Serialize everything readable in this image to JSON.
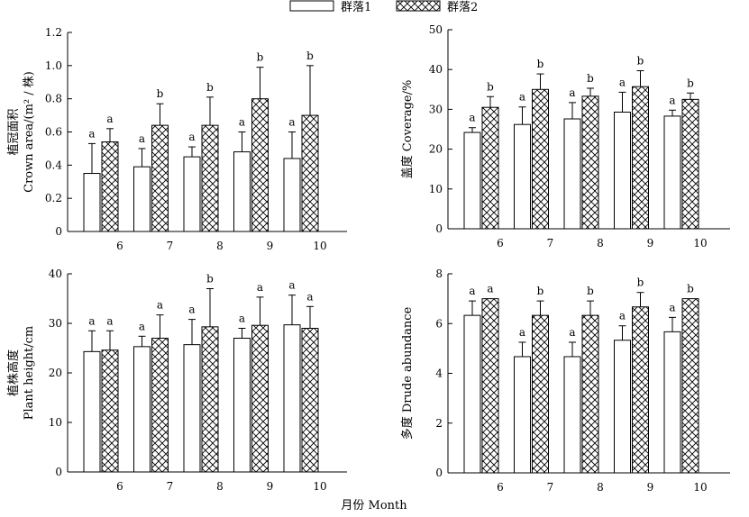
{
  "legend": {
    "series1": "群落1",
    "series2": "群落2"
  },
  "xlabel": "月份 Month",
  "colors": {
    "series1_fill": "#ffffff",
    "series2_fill": "hatch-crosshatch",
    "stroke": "#000000"
  },
  "chart_data": [
    {
      "type": "bar",
      "ylabel": [
        "植冠面积",
        "Crown area/(m² / 株)"
      ],
      "ylim": [
        0,
        1.2
      ],
      "yticks": [
        "0",
        "0.2",
        "0.4",
        "0.6",
        "0.8",
        "1.0",
        "1.2"
      ],
      "categories": [
        "6",
        "7",
        "8",
        "9",
        "10"
      ],
      "series": [
        {
          "values": [
            0.35,
            0.39,
            0.45,
            0.48,
            0.44
          ],
          "errors": [
            0.18,
            0.11,
            0.06,
            0.12,
            0.16
          ],
          "labels": [
            "a",
            "a",
            "a",
            "a",
            "a"
          ]
        },
        {
          "values": [
            0.54,
            0.64,
            0.64,
            0.8,
            0.7
          ],
          "errors": [
            0.08,
            0.13,
            0.17,
            0.19,
            0.3
          ],
          "labels": [
            "a",
            "b",
            "b",
            "b",
            "b"
          ]
        }
      ]
    },
    {
      "type": "bar",
      "ylabel": [
        "盖度 Coverage/%"
      ],
      "ylim": [
        0,
        50
      ],
      "yticks": [
        "0",
        "10",
        "20",
        "30",
        "40",
        "50"
      ],
      "categories": [
        "6",
        "7",
        "8",
        "9",
        "10"
      ],
      "series": [
        {
          "values": [
            24.2,
            26.2,
            27.6,
            29.3,
            28.3
          ],
          "errors": [
            1.2,
            4.4,
            4.1,
            5.0,
            1.5
          ],
          "labels": [
            "a",
            "a",
            "a",
            "a",
            "a"
          ]
        },
        {
          "values": [
            30.5,
            35.0,
            33.3,
            35.7,
            32.5
          ],
          "errors": [
            2.7,
            3.9,
            2.0,
            4.0,
            1.6
          ],
          "labels": [
            "b",
            "b",
            "b",
            "b",
            "b"
          ]
        }
      ]
    },
    {
      "type": "bar",
      "ylabel": [
        "植株高度",
        "Plant height/cm"
      ],
      "ylim": [
        0,
        40
      ],
      "yticks": [
        "0",
        "10",
        "20",
        "30",
        "40"
      ],
      "categories": [
        "6",
        "7",
        "8",
        "9",
        "10"
      ],
      "series": [
        {
          "values": [
            24.3,
            25.3,
            25.7,
            27.0,
            29.7
          ],
          "errors": [
            4.2,
            2.1,
            5.1,
            2.0,
            6.0
          ],
          "labels": [
            "a",
            "a",
            "a",
            "a",
            "a"
          ]
        },
        {
          "values": [
            24.6,
            27.0,
            29.3,
            29.6,
            29.0
          ],
          "errors": [
            3.9,
            4.7,
            7.7,
            5.7,
            4.4
          ],
          "labels": [
            "a",
            "a",
            "b",
            "a",
            "a"
          ]
        }
      ]
    },
    {
      "type": "bar",
      "ylabel": [
        "多度 Drude abundance"
      ],
      "ylim": [
        0,
        8
      ],
      "yticks": [
        "0",
        "2",
        "4",
        "6",
        "8"
      ],
      "categories": [
        "6",
        "7",
        "8",
        "9",
        "10"
      ],
      "series": [
        {
          "values": [
            6.33,
            4.67,
            4.67,
            5.33,
            5.67
          ],
          "errors": [
            0.58,
            0.58,
            0.58,
            0.58,
            0.58
          ],
          "labels": [
            "a",
            "a",
            "a",
            "a",
            "a"
          ]
        },
        {
          "values": [
            7.0,
            6.33,
            6.33,
            6.67,
            7.0
          ],
          "errors": [
            0,
            0.58,
            0.58,
            0.58,
            0
          ],
          "labels": [
            "a",
            "b",
            "b",
            "b",
            "b"
          ]
        }
      ]
    }
  ]
}
